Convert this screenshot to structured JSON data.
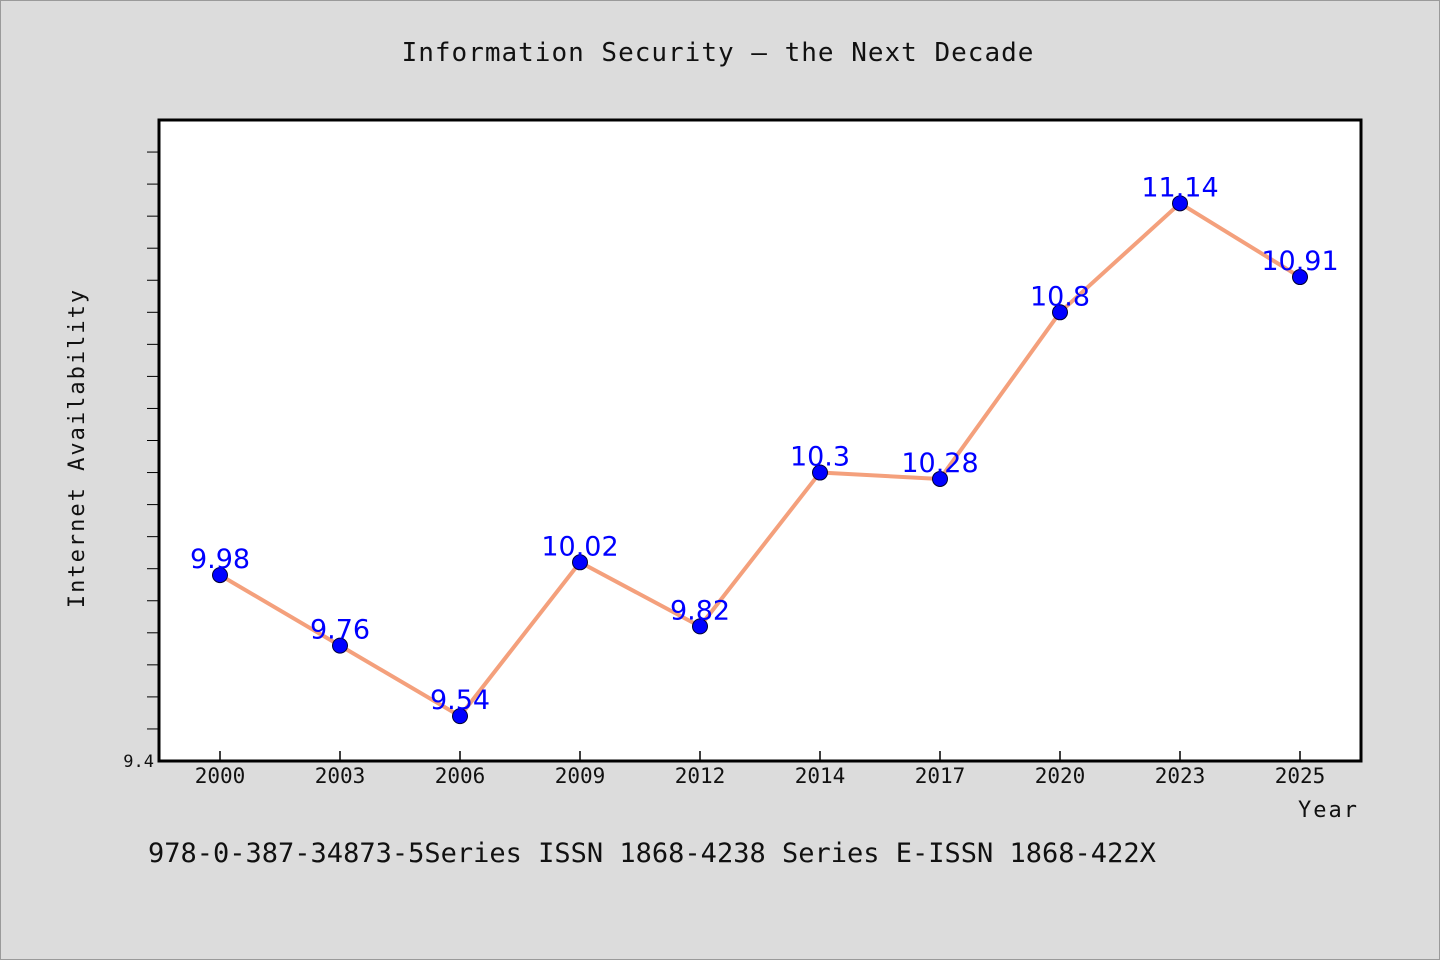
{
  "chart_data": {
    "type": "line",
    "title": "Information Security – the Next Decade",
    "xlabel": "Year",
    "ylabel": "Internet Availability",
    "categories": [
      "2000",
      "2003",
      "2006",
      "2009",
      "2012",
      "2014",
      "2017",
      "2020",
      "2023",
      "2025"
    ],
    "series": [
      {
        "values": [
          9.98,
          9.76,
          9.54,
          10.02,
          9.82,
          10.3,
          10.28,
          10.8,
          11.14,
          10.91
        ],
        "labels": [
          "9.98",
          "9.76",
          "9.54",
          "10.02",
          "9.82",
          "10.3",
          "10.28",
          "10.8",
          "11.14",
          "10.91"
        ]
      }
    ],
    "ylim": [
      9.4,
      11.4
    ],
    "ytick_labels": [
      "9.4"
    ],
    "grid": false,
    "colors": {
      "line": "#f4a07c",
      "marker": "#0000ff",
      "label": "#0000ff",
      "background": "#dcdcdc",
      "plot_area": "#ffffff"
    }
  },
  "footer": {
    "text": "978-0-387-34873-5Series ISSN 1868-4238 Series E-ISSN 1868-422X"
  }
}
